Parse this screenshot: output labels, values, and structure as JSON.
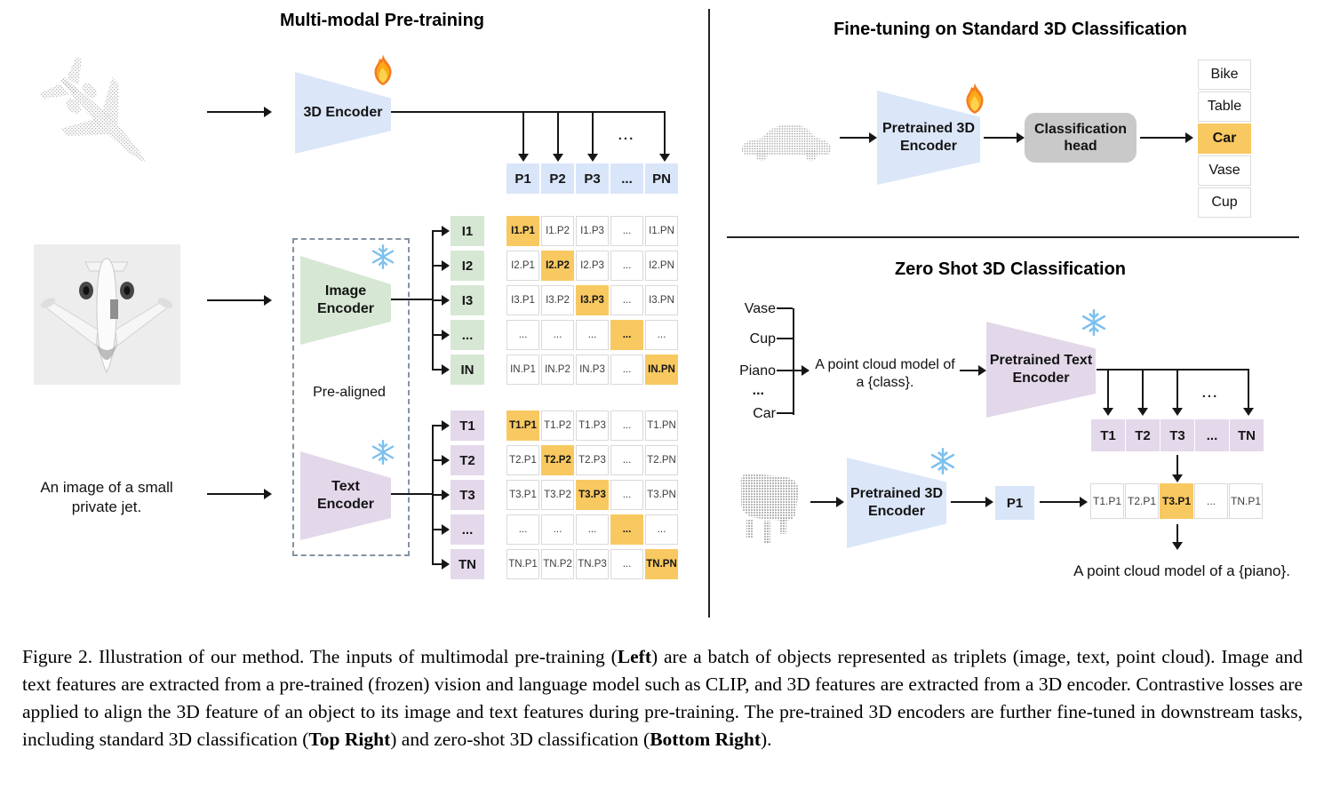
{
  "colors": {
    "encoder_blue": "#dbe6f8",
    "encoder_green": "#d6e8d4",
    "encoder_purple": "#e3d7ea",
    "cell_blue": "#d9e5f8",
    "cell_green": "#d6e8d3",
    "cell_purple": "#e4d8eb",
    "highlight_orange": "#f8c861",
    "head_gray": "#c9c9c9",
    "snowflake_blue": "#7cc0ee",
    "flame_orange": "#f57c1f"
  },
  "left_panel": {
    "title": "Multi-modal Pre-training",
    "encoder_3d_label": "3D Encoder",
    "p_row": [
      "P1",
      "P2",
      "P3",
      "...",
      "PN"
    ],
    "branch_dots": "...",
    "image_encoder_label": [
      "Image",
      "Encoder"
    ],
    "text_encoder_label": [
      "Text",
      "Encoder"
    ],
    "pre_aligned_label": "Pre-aligned",
    "text_prompt": [
      "An image of a small",
      "private jet."
    ],
    "i_labels": [
      "I1",
      "I2",
      "I3",
      "...",
      "IN"
    ],
    "i_matrix": [
      [
        "I1.P1",
        "I1.P2",
        "I1.P3",
        "...",
        "I1.PN"
      ],
      [
        "I2.P1",
        "I2.P2",
        "I2.P3",
        "...",
        "I2.PN"
      ],
      [
        "I3.P1",
        "I3.P2",
        "I3.P3",
        "...",
        "I3.PN"
      ],
      [
        "...",
        "...",
        "...",
        "...",
        "..."
      ],
      [
        "IN.P1",
        "IN.P2",
        "IN.P3",
        "...",
        "IN.PN"
      ]
    ],
    "t_labels": [
      "T1",
      "T2",
      "T3",
      "...",
      "TN"
    ],
    "t_matrix": [
      [
        "T1.P1",
        "T1.P2",
        "T1.P3",
        "...",
        "T1.PN"
      ],
      [
        "T2.P1",
        "T2.P2",
        "T2.P3",
        "...",
        "T2.PN"
      ],
      [
        "T3.P1",
        "T3.P2",
        "T3.P3",
        "...",
        "T3.PN"
      ],
      [
        "...",
        "...",
        "...",
        "...",
        "..."
      ],
      [
        "TN.P1",
        "TN.P2",
        "TN.P3",
        "...",
        "TN.PN"
      ]
    ]
  },
  "top_right_panel": {
    "title": "Fine-tuning on Standard 3D Classification",
    "encoder_label": [
      "Pretrained 3D",
      "Encoder"
    ],
    "head_label": [
      "Classification",
      "head"
    ],
    "classes": [
      "Bike",
      "Table",
      "Car",
      "Vase",
      "Cup"
    ],
    "highlighted_class": "Car"
  },
  "bottom_right_panel": {
    "title": "Zero Shot 3D Classification",
    "class_list": [
      "Vase",
      "Cup",
      "Piano",
      "...",
      "Car"
    ],
    "prompt": [
      "A point cloud model of",
      "a {class}."
    ],
    "text_encoder_label": [
      "Pretrained Text",
      "Encoder"
    ],
    "encoder_label": [
      "Pretrained 3D",
      "Encoder"
    ],
    "t_row": [
      "T1",
      "T2",
      "T3",
      "...",
      "TN"
    ],
    "branch_dots": "...",
    "p1_label": "P1",
    "match_row": [
      "T1.P1",
      "T2.P1",
      "T3.P1",
      "...",
      "TN.P1"
    ],
    "result_caption": "A point cloud model of a {piano}."
  },
  "caption": {
    "parts": [
      {
        "text": "Figure 2. Illustration of our method. The inputs of multimodal pre-training ("
      },
      {
        "text": "Left",
        "bold": true
      },
      {
        "text": ") are a batch of objects represented as triplets (image, text, point cloud).  Image and text features are extracted from a pre-trained (frozen) vision and language model such as CLIP, and 3D features are extracted from a 3D encoder.  Contrastive losses are applied to align the 3D feature of an object to its image and text features during pre-training.  The pre-trained 3D encoders are further fine-tuned in downstream tasks, including standard 3D classification ("
      },
      {
        "text": "Top Right",
        "bold": true
      },
      {
        "text": ") and zero-shot 3D classification ("
      },
      {
        "text": "Bottom Right",
        "bold": true
      },
      {
        "text": ")."
      }
    ]
  }
}
